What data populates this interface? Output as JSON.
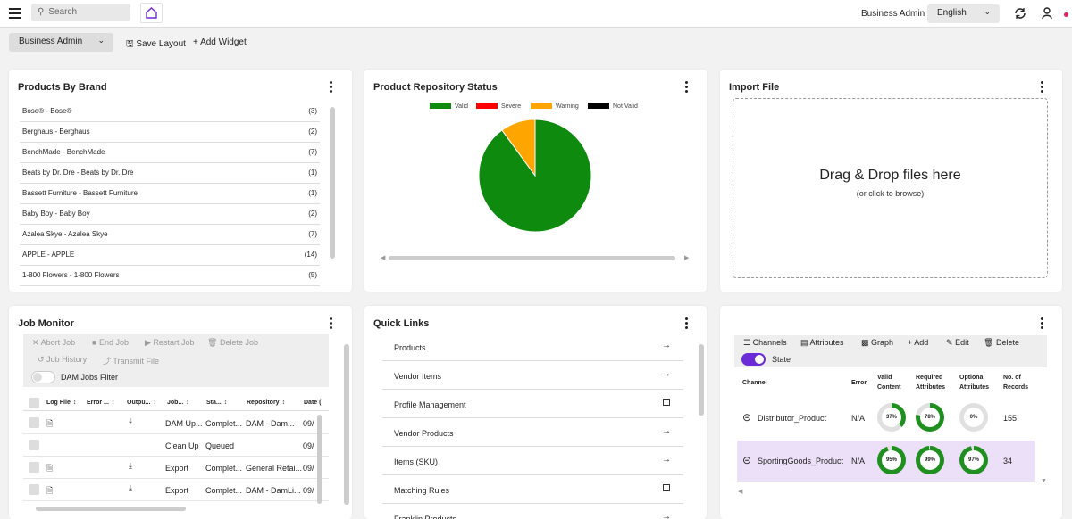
{
  "topbar": {
    "search_placeholder": "Search",
    "user": "Business Admin",
    "language": "English"
  },
  "subbar": {
    "role": "Business Admin",
    "save_layout": "Save Layout",
    "add_widget": "Add Widget"
  },
  "brands": {
    "title": "Products By Brand",
    "items": [
      {
        "name": "Bose® - Bose®",
        "count": "(3)"
      },
      {
        "name": "Berghaus - Berghaus",
        "count": "(2)"
      },
      {
        "name": "BenchMade - BenchMade",
        "count": "(7)"
      },
      {
        "name": "Beats by Dr. Dre - Beats by Dr. Dre",
        "count": "(1)"
      },
      {
        "name": "Bassett Furniture - Bassett Furniture",
        "count": "(1)"
      },
      {
        "name": "Baby Boy - Baby Boy",
        "count": "(2)"
      },
      {
        "name": "Azalea Skye - Azalea Skye",
        "count": "(7)"
      },
      {
        "name": "APPLE - APPLE",
        "count": "(14)"
      },
      {
        "name": "1-800 Flowers - 1-800 Flowers",
        "count": "(5)"
      }
    ]
  },
  "status": {
    "title": "Product Repository Status"
  },
  "chart_data": {
    "type": "pie",
    "title": "",
    "legend": "top",
    "categories": [
      "Valid",
      "Severe",
      "Warning",
      "Not Valid"
    ],
    "values": [
      90,
      0,
      10,
      0
    ],
    "colors": [
      "#0e8a0e",
      "#ff0000",
      "#ffa500",
      "#000000"
    ]
  },
  "import": {
    "title": "Import File",
    "drop_text": "Drag & Drop files here",
    "sub_text": "(or click to browse)"
  },
  "jobs": {
    "title": "Job Monitor",
    "buttons": {
      "abort": "Abort Job",
      "end": "End Job",
      "restart": "Restart Job",
      "delete": "Delete Job",
      "history": "Job History",
      "transmit": "Transmit File"
    },
    "filter_label": "DAM Jobs Filter",
    "columns": [
      "Log File",
      "Error ...",
      "Outpu...",
      "Job...",
      "Sta...",
      "Repository",
      "Date ("
    ],
    "rows": [
      {
        "job": "DAM Up...",
        "status": "Complet...",
        "repo": "DAM - Dam...",
        "date": "09/"
      },
      {
        "job": "Clean Up",
        "status": "Queued",
        "repo": "",
        "date": "09/"
      },
      {
        "job": "Export",
        "status": "Complet...",
        "repo": "General Retai...",
        "date": "09/"
      },
      {
        "job": "Export",
        "status": "Complet...",
        "repo": "DAM - DamLi...",
        "date": "09/"
      }
    ]
  },
  "quicklinks": {
    "title": "Quick Links",
    "items": [
      {
        "label": "Products",
        "kind": "arrow"
      },
      {
        "label": "Vendor Items",
        "kind": "arrow"
      },
      {
        "label": "Profile Management",
        "kind": "square"
      },
      {
        "label": "Vendor Products",
        "kind": "arrow"
      },
      {
        "label": "Items (SKU)",
        "kind": "arrow"
      },
      {
        "label": "Matching Rules",
        "kind": "square"
      },
      {
        "label": "Franklin Products",
        "kind": "arrow"
      }
    ]
  },
  "channels": {
    "toolbar": {
      "channels": "Channels",
      "attributes": "Attributes",
      "graph": "Graph",
      "add": "Add",
      "edit": "Edit",
      "delete": "Delete",
      "state": "State"
    },
    "headers": {
      "channel": "Channel",
      "error": "Error",
      "valid": "Valid Content",
      "required": "Required Attributes",
      "optional": "Optional Attributes",
      "records": "No. of Records"
    },
    "rows": [
      {
        "name": "Distributor_Product",
        "error": "N/A",
        "valid": "37%",
        "valid_pct": 37,
        "required": "78%",
        "required_pct": 78,
        "optional": "0%",
        "optional_pct": 0,
        "records": "155"
      },
      {
        "name": "SportingGoods_Product",
        "error": "N/A",
        "valid": "95%",
        "valid_pct": 95,
        "required": "99%",
        "required_pct": 99,
        "optional": "97%",
        "optional_pct": 97,
        "records": "34"
      }
    ]
  },
  "colors": {
    "accent": "#6c2bd9",
    "donut_fill": "#1f8f1f",
    "donut_track": "#e0e0e0",
    "selected_row": "#ecdff8"
  }
}
